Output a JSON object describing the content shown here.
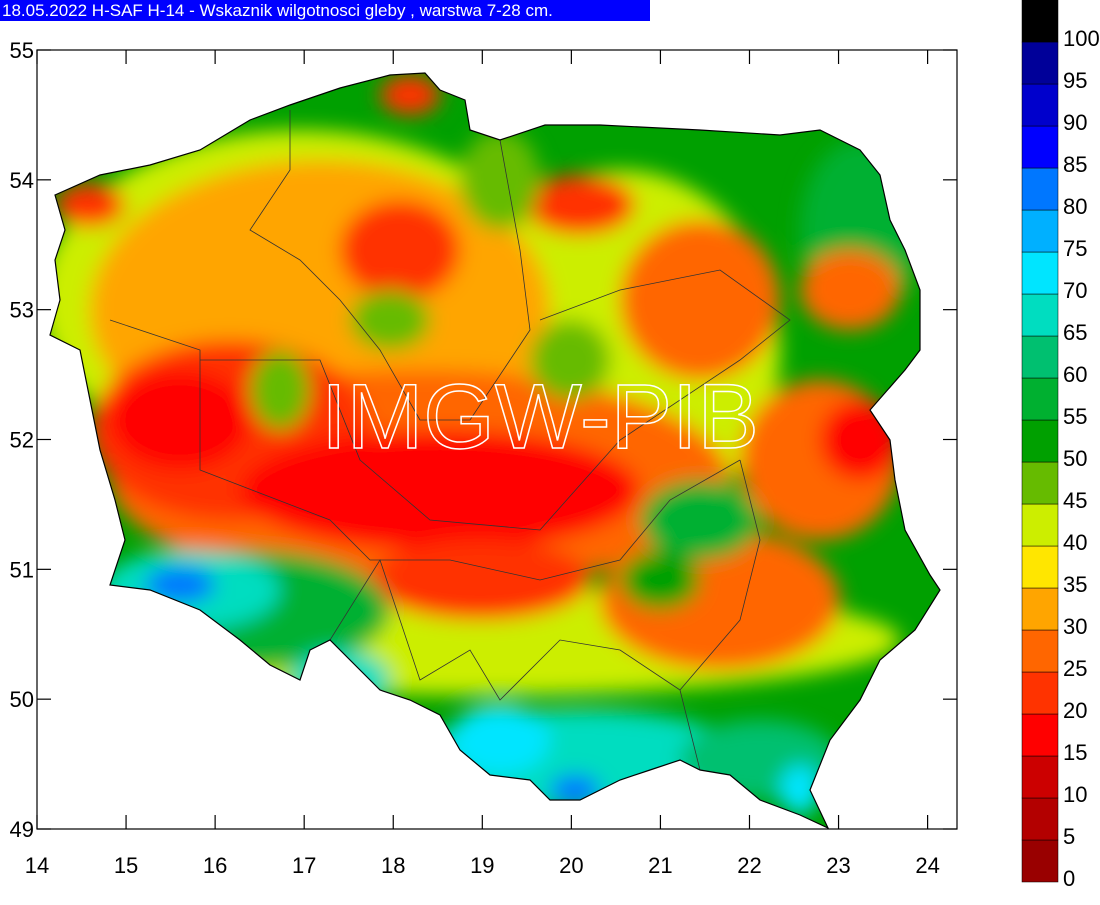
{
  "title": "18.05.2022 H-SAF H-14 - Wskaznik wilgotnosci gleby , warstwa 7-28 cm.",
  "watermark": "IMGW-PIB",
  "axes": {
    "xlim": [
      14,
      24.33
    ],
    "ylim": [
      49,
      55
    ],
    "xticks": [
      14,
      15,
      16,
      17,
      18,
      19,
      20,
      21,
      22,
      23,
      24
    ],
    "yticks": [
      49,
      50,
      51,
      52,
      53,
      54,
      55
    ]
  },
  "legend": {
    "levels": [
      0,
      5,
      10,
      15,
      20,
      25,
      30,
      35,
      40,
      45,
      50,
      55,
      60,
      65,
      70,
      75,
      80,
      85,
      90,
      95,
      100
    ],
    "colors": [
      "#990000",
      "#b30000",
      "#cc0000",
      "#ff0000",
      "#ff3300",
      "#ff6600",
      "#ffa500",
      "#ffe600",
      "#ccee00",
      "#66bb00",
      "#00a000",
      "#00b030",
      "#00c070",
      "#00ddc0",
      "#00e5ff",
      "#00b0ff",
      "#0077ff",
      "#0000ff",
      "#0000cc",
      "#000099",
      "#000000"
    ]
  }
}
